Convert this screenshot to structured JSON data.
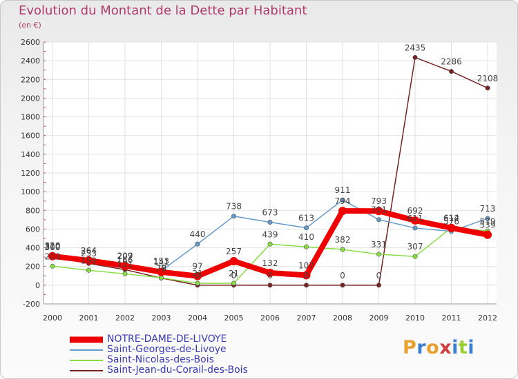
{
  "header": {
    "title": "Evolution du Montant de la Dette par Habitant",
    "unit": "(en €)"
  },
  "brand": {
    "logo_text": "Proxiti"
  },
  "chart_data": {
    "type": "line",
    "title": "Evolution du Montant de la Dette par Habitant",
    "subtitle": "(en €)",
    "xlabel": "",
    "ylabel": "",
    "x": [
      "2000",
      "2001",
      "2002",
      "2003",
      "2004",
      "2005",
      "2006",
      "2007",
      "2008",
      "2009",
      "2010",
      "2011",
      "2012"
    ],
    "ylim": [
      -200,
      2600
    ],
    "yticks": [
      -200,
      0,
      200,
      400,
      600,
      800,
      1000,
      1200,
      1400,
      1600,
      1800,
      2000,
      2200,
      2400,
      2600
    ],
    "grid": true,
    "legend_position": "bottom-left",
    "series": [
      {
        "name": "NOTRE-DAME-DE-LIVOYE",
        "color": "#ee0000",
        "values": [
          310,
          264,
          207,
          141,
          97,
          257,
          132,
          107,
          794,
          793,
          692,
          612,
          539
        ],
        "labels": [
          "310",
          "264",
          "207",
          "141",
          "97",
          "257",
          "132",
          "107",
          "794",
          "793",
          "692",
          "612",
          "539"
        ]
      },
      {
        "name": "Saint-Georges-de-Livoye",
        "color": "#6699cc",
        "values": [
          320,
          264,
          209,
          153,
          440,
          738,
          673,
          613,
          911,
          701,
          611,
          576,
          713
        ],
        "labels": [
          "320",
          "264",
          "209",
          "153",
          "440",
          "738",
          "673",
          "613",
          "911",
          "701",
          "611",
          "576",
          "713"
        ]
      },
      {
        "name": "Saint-Nicolas-des-Bois",
        "color": "#88dd44",
        "values": [
          203,
          159,
          121,
          79,
          21,
          21,
          439,
          410,
          382,
          331,
          307,
          614,
          579
        ],
        "labels": [
          "203",
          "159",
          "121",
          "79",
          "21",
          "21",
          "439",
          "410",
          "382",
          "331",
          "307",
          "614",
          "579"
        ]
      },
      {
        "name": "Saint-Jean-du-Corail-des-Bois",
        "color": "#772222",
        "values": [
          300,
          233,
          166,
          76,
          0,
          0,
          0,
          0,
          0,
          0,
          2435,
          2286,
          2108
        ],
        "labels": [
          "300",
          "233",
          "166",
          "76",
          "0",
          "0",
          "0",
          "0",
          "0",
          "0",
          "2435",
          "2286",
          "2108"
        ]
      }
    ]
  }
}
